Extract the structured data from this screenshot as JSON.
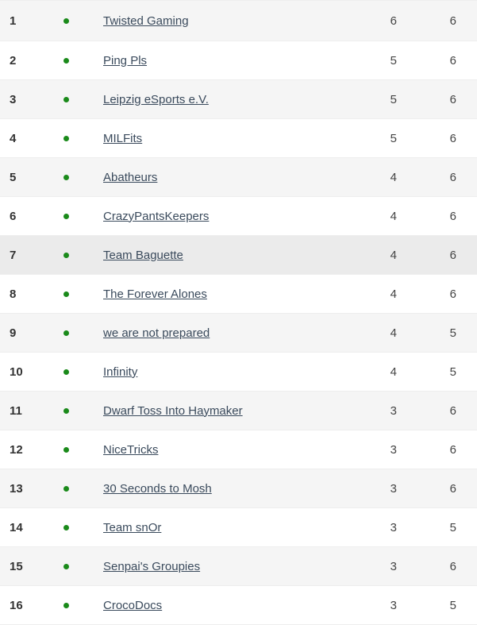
{
  "colors": {
    "status_dot": "#1a8a1a",
    "link": "#3a4a5c",
    "row_odd": "#f5f5f5",
    "row_even": "#ffffff",
    "row_highlight": "#ebebeb"
  },
  "rows": [
    {
      "rank": "1",
      "team": "Twisted Gaming",
      "a": "6",
      "b": "6"
    },
    {
      "rank": "2",
      "team": "Ping Pls",
      "a": "5",
      "b": "6"
    },
    {
      "rank": "3",
      "team": "Leipzig eSports e.V.",
      "a": "5",
      "b": "6"
    },
    {
      "rank": "4",
      "team": "MILFits",
      "a": "5",
      "b": "6"
    },
    {
      "rank": "5",
      "team": "Abatheurs",
      "a": "4",
      "b": "6"
    },
    {
      "rank": "6",
      "team": "CrazyPantsKeepers",
      "a": "4",
      "b": "6"
    },
    {
      "rank": "7",
      "team": "Team Baguette",
      "a": "4",
      "b": "6"
    },
    {
      "rank": "8",
      "team": "The Forever Alones",
      "a": "4",
      "b": "6"
    },
    {
      "rank": "9",
      "team": "we are not prepared",
      "a": "4",
      "b": "5"
    },
    {
      "rank": "10",
      "team": "Infinity",
      "a": "4",
      "b": "5"
    },
    {
      "rank": "11",
      "team": "Dwarf Toss Into Haymaker",
      "a": "3",
      "b": "6"
    },
    {
      "rank": "12",
      "team": "NiceTricks",
      "a": "3",
      "b": "6"
    },
    {
      "rank": "13",
      "team": "30 Seconds to Mosh",
      "a": "3",
      "b": "6"
    },
    {
      "rank": "14",
      "team": "Team snOr",
      "a": "3",
      "b": "5"
    },
    {
      "rank": "15",
      "team": "Senpai's Groupies",
      "a": "3",
      "b": "6"
    },
    {
      "rank": "16",
      "team": "CrocoDocs",
      "a": "3",
      "b": "5"
    }
  ]
}
